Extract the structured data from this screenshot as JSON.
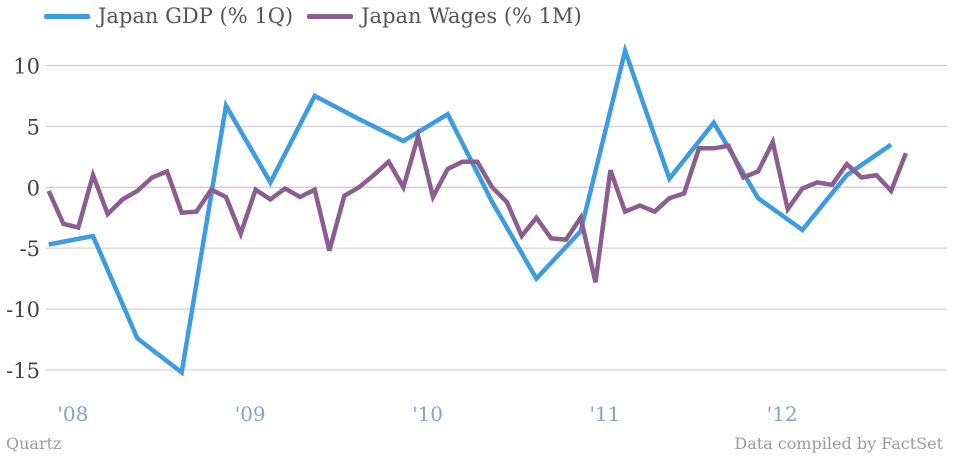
{
  "legend": {
    "items": [
      {
        "label": "Japan GDP (% 1Q)",
        "color": "#3d9be0"
      },
      {
        "label": "Japan Wages (% 1M)",
        "color": "#8b5e8f"
      }
    ]
  },
  "footer": {
    "source_left": "Quartz",
    "source_right": "Data compiled by FactSet"
  },
  "chart_data": {
    "type": "line",
    "title": "",
    "xlabel": "",
    "ylabel": "",
    "x_range": [
      2007.86,
      2012.94
    ],
    "ylim": [
      -17.3,
      12.5
    ],
    "y_ticks": [
      10,
      5,
      0,
      -5,
      -10,
      -15
    ],
    "y_tick_labels": [
      "10",
      "5",
      "0",
      "-5",
      "-10",
      "-15"
    ],
    "x_ticks": [
      2008.0,
      2009.0,
      2010.0,
      2011.0,
      2012.0
    ],
    "x_tick_labels": [
      "'08",
      "'09",
      "'10",
      "'11",
      "'12"
    ],
    "zero_line_color": "#e8a6e0",
    "grid_color": "#c9c9c9",
    "grid": true,
    "legend_position": "top-left",
    "series": [
      {
        "name": "Japan GDP (% 1Q)",
        "color": "#3d9be0",
        "points": [
          [
            2007.875,
            -4.7
          ],
          [
            2008.125,
            -4.0
          ],
          [
            2008.375,
            -12.4
          ],
          [
            2008.625,
            -15.2
          ],
          [
            2008.875,
            6.7
          ],
          [
            2009.125,
            0.4
          ],
          [
            2009.375,
            7.5
          ],
          [
            2009.625,
            5.6
          ],
          [
            2009.875,
            3.8
          ],
          [
            2010.125,
            6.0
          ],
          [
            2010.375,
            -1.2
          ],
          [
            2010.625,
            -7.5
          ],
          [
            2010.875,
            -3.6
          ],
          [
            2011.125,
            11.2
          ],
          [
            2011.375,
            0.7
          ],
          [
            2011.625,
            5.3
          ],
          [
            2011.875,
            -0.9
          ],
          [
            2012.125,
            -3.5
          ],
          [
            2012.375,
            1.0
          ],
          [
            2012.625,
            3.5
          ]
        ]
      },
      {
        "name": "Japan Wages (% 1M)",
        "color": "#8b5e8f",
        "points": [
          [
            2007.875,
            -0.3
          ],
          [
            2007.958,
            -3.0
          ],
          [
            2008.042,
            -3.3
          ],
          [
            2008.125,
            1.0
          ],
          [
            2008.208,
            -2.2
          ],
          [
            2008.292,
            -1.0
          ],
          [
            2008.375,
            -0.3
          ],
          [
            2008.458,
            0.8
          ],
          [
            2008.542,
            1.3
          ],
          [
            2008.625,
            -2.1
          ],
          [
            2008.708,
            -2.0
          ],
          [
            2008.792,
            -0.2
          ],
          [
            2008.875,
            -0.8
          ],
          [
            2008.958,
            -3.8
          ],
          [
            2009.042,
            -0.2
          ],
          [
            2009.125,
            -1.0
          ],
          [
            2009.208,
            -0.1
          ],
          [
            2009.292,
            -0.8
          ],
          [
            2009.375,
            -0.2
          ],
          [
            2009.458,
            -5.2
          ],
          [
            2009.542,
            -0.7
          ],
          [
            2009.625,
            0.0
          ],
          [
            2009.708,
            1.0
          ],
          [
            2009.792,
            2.1
          ],
          [
            2009.875,
            0.0
          ],
          [
            2009.958,
            4.2
          ],
          [
            2010.042,
            -0.8
          ],
          [
            2010.125,
            1.5
          ],
          [
            2010.208,
            2.1
          ],
          [
            2010.292,
            2.1
          ],
          [
            2010.375,
            0.0
          ],
          [
            2010.458,
            -1.2
          ],
          [
            2010.542,
            -4.0
          ],
          [
            2010.625,
            -2.5
          ],
          [
            2010.708,
            -4.2
          ],
          [
            2010.792,
            -4.3
          ],
          [
            2010.875,
            -2.5
          ],
          [
            2010.958,
            -7.8
          ],
          [
            2011.042,
            1.4
          ],
          [
            2011.125,
            -2.0
          ],
          [
            2011.208,
            -1.5
          ],
          [
            2011.292,
            -2.0
          ],
          [
            2011.375,
            -0.9
          ],
          [
            2011.458,
            -0.5
          ],
          [
            2011.542,
            3.2
          ],
          [
            2011.625,
            3.2
          ],
          [
            2011.708,
            3.4
          ],
          [
            2011.792,
            0.8
          ],
          [
            2011.875,
            1.3
          ],
          [
            2011.958,
            3.7
          ],
          [
            2012.042,
            -1.8
          ],
          [
            2012.125,
            -0.1
          ],
          [
            2012.208,
            0.4
          ],
          [
            2012.292,
            0.2
          ],
          [
            2012.375,
            1.9
          ],
          [
            2012.458,
            0.8
          ],
          [
            2012.542,
            1.0
          ],
          [
            2012.625,
            -0.3
          ],
          [
            2012.708,
            2.8
          ]
        ]
      }
    ]
  }
}
